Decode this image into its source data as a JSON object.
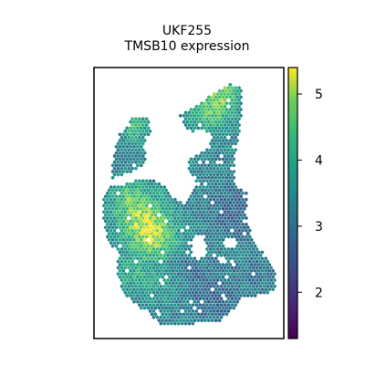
{
  "chart_data": {
    "type": "heatmap",
    "title_lines": [
      "UKF255",
      "TMSB10 expression"
    ],
    "xlabel": "",
    "ylabel": "",
    "colormap": "viridis",
    "colorbar": {
      "range": [
        1.3,
        5.4
      ],
      "ticks": [
        2,
        3,
        4,
        5
      ],
      "tick_labels": [
        "2",
        "3",
        "4",
        "5"
      ]
    },
    "axes_ticks_visible": false,
    "spot_shape": "hexagon",
    "regions": [
      {
        "name": "top-right lobe",
        "level": 3.9
      },
      {
        "name": "upper-left island",
        "level": 3.7
      },
      {
        "name": "left-center hotspot",
        "level": 5.1
      },
      {
        "name": "right arm",
        "level": 3.0
      },
      {
        "name": "lower body",
        "level": 3.3
      }
    ]
  }
}
